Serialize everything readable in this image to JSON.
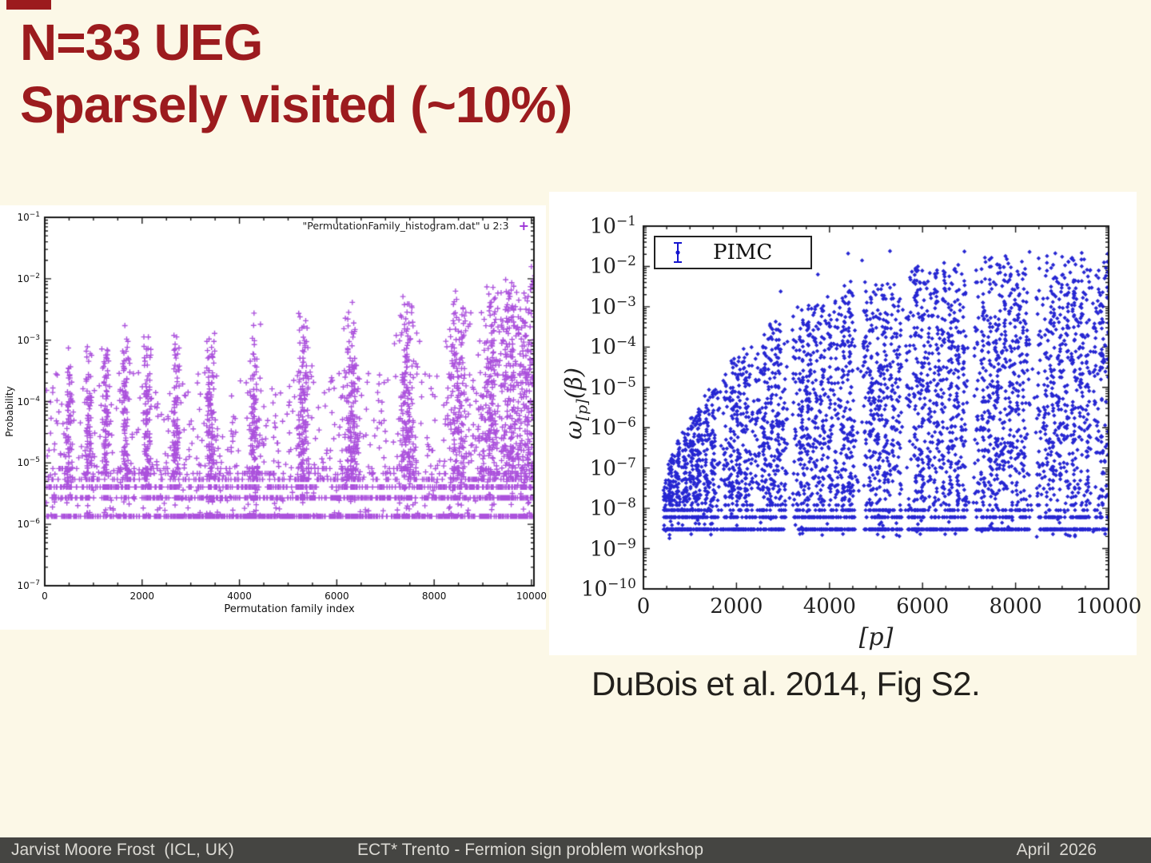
{
  "slide": {
    "title_line1": "N=33 UEG",
    "title_line2": "Sparsely visited (~10%)",
    "title_color": "#9C1B1E",
    "background_color": "#FCF8E7",
    "caption": "DuBois et al. 2014, Fig S2."
  },
  "footer": {
    "left": "Jarvist Moore Frost  (ICL, UK)",
    "center": "ECT* Trento - Fermion sign problem workshop",
    "right": "April  2026",
    "background_color": "#454542",
    "text_color": "#DCDAD4"
  },
  "chart_data": [
    {
      "id": "permutation-family-histogram",
      "type": "scatter",
      "style": "gnuplot",
      "marker": "plus",
      "marker_color": "#9C33D6",
      "legend_label": "\"PermutationFamily_histogram.dat\" u 2:3",
      "legend_position": "top-right",
      "xlabel": "Permutation family index",
      "ylabel": "Probability",
      "x_ticks": [
        0,
        2000,
        4000,
        6000,
        8000,
        10000
      ],
      "y_tick_exponents": [
        -1,
        -2,
        -3,
        -4,
        -5,
        -6,
        -7
      ],
      "xlim": [
        0,
        10050
      ],
      "ylog_range": [
        -7,
        -1
      ],
      "grid": false,
      "structure": {
        "seed": 42,
        "description": "Vertical comb-like streaks of visited permutation families; envelope rises left-to-right from ~1e-3 to ~1e-2; low-probability values quantized at multiples of 1.35e-6 forming horizontal rows; nothing below ~1.35e-6 until axis floor 1e-7.",
        "streak_centers_x": [
          500,
          900,
          1250,
          1650,
          2100,
          2700,
          3400,
          4300,
          5300,
          6300,
          7450,
          8500,
          9150,
          9550,
          9900
        ],
        "streak_top": {
          "base": -3.22,
          "slope": 1.16
        },
        "floor_exponent": -5.86,
        "quant_base_probability": 1.35e-06,
        "quant_rows": [
          [
            1,
            115
          ],
          [
            2,
            95
          ],
          [
            3,
            72
          ],
          [
            4,
            56
          ],
          [
            5,
            40
          ],
          [
            6,
            28
          ]
        ],
        "background_points": 1050
      }
    },
    {
      "id": "pimc-permutation-weights",
      "type": "scatter",
      "style": "matplotlib",
      "marker": "diamond",
      "marker_color": "#1414CE",
      "legend_label": "PIMC",
      "legend_position": "top-left",
      "xlabel": "[p]",
      "ylabel": "ω[p](β)",
      "ylabel_parts": {
        "omega": "ω",
        "sub": "[p]",
        "rest": "(β)"
      },
      "x_ticks": [
        0,
        2000,
        4000,
        6000,
        8000,
        10000
      ],
      "y_tick_exponents": [
        -1,
        -2,
        -3,
        -4,
        -5,
        -6,
        -7,
        -8,
        -9,
        -10
      ],
      "xlim": [
        0,
        10000
      ],
      "ylog_range": [
        -10,
        -1
      ],
      "grid": false,
      "structure": {
        "seed": 7,
        "description": "Dense plumes of permutation weights rising along envelope ~ -1.55 - 6.8*exp(-x/2100) with vertical gaps between family bands; weights quantized at multiples of 3e-9 forming bottom rows; empty below ~3e-9.",
        "bands": [
          [
            450,
            1600
          ],
          [
            1750,
            2350
          ],
          [
            2450,
            3050
          ],
          [
            3250,
            4550
          ],
          [
            4750,
            5550
          ],
          [
            5700,
            6950
          ],
          [
            7150,
            8300
          ],
          [
            8500,
            9600
          ],
          [
            9700,
            10000
          ]
        ],
        "envelope": {
          "top": -1.55,
          "depth": 6.8,
          "decay": 2100
        },
        "floor_exponent": -8.75,
        "quant_base_probability": 3e-09,
        "bottom_rows": [
          [
            1,
            150
          ],
          [
            2,
            85
          ],
          [
            3,
            45
          ]
        ],
        "density_points_per_unit": 0.52,
        "sub_streak_spacing": 150,
        "peak_outliers": [
          [
            2950,
            -2.62
          ],
          [
            3750,
            -2.2
          ],
          [
            4400,
            -1.68
          ],
          [
            4700,
            -1.85
          ],
          [
            5300,
            -1.62
          ],
          [
            5900,
            -2.0
          ],
          [
            6900,
            -1.63
          ],
          [
            7600,
            -1.95
          ],
          [
            8300,
            -1.64
          ],
          [
            9000,
            -1.76
          ],
          [
            9600,
            -2.1
          ],
          [
            9900,
            -1.9
          ]
        ]
      }
    }
  ]
}
